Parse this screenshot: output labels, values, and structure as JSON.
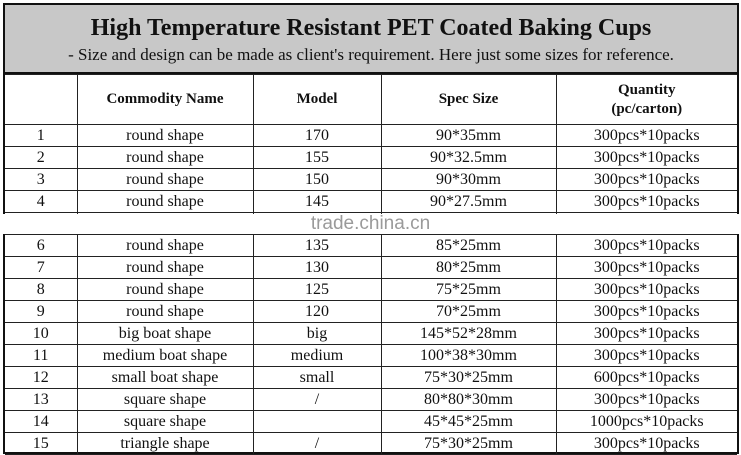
{
  "title": "High Temperature Resistant PET Coated Baking Cups",
  "subtitle": "-  Size and design can be made as client's requirement. Here just some sizes for reference.",
  "columns": [
    "",
    "Commodity Name",
    "Model",
    "Spec Size",
    "Quantity\n(pc/carton)"
  ],
  "quantity_header": {
    "line1": "Quantity",
    "line2": "(pc/carton)"
  },
  "rows": [
    [
      "1",
      "round shape",
      "170",
      "90*35mm",
      "300pcs*10packs"
    ],
    [
      "2",
      "round shape",
      "155",
      "90*32.5mm",
      "300pcs*10packs"
    ],
    [
      "3",
      "round shape",
      "150",
      "90*30mm",
      "300pcs*10packs"
    ],
    [
      "4",
      "round shape",
      "145",
      "90*27.5mm",
      "300pcs*10packs"
    ],
    [
      "",
      "",
      "",
      "",
      ""
    ],
    [
      "6",
      "round shape",
      "135",
      "85*25mm",
      "300pcs*10packs"
    ],
    [
      "7",
      "round shape",
      "130",
      "80*25mm",
      "300pcs*10packs"
    ],
    [
      "8",
      "round shape",
      "125",
      "75*25mm",
      "300pcs*10packs"
    ],
    [
      "9",
      "round shape",
      "120",
      "70*25mm",
      "300pcs*10packs"
    ],
    [
      "10",
      "big boat shape",
      "big",
      "145*52*28mm",
      "300pcs*10packs"
    ],
    [
      "11",
      "medium boat shape",
      "medium",
      "100*38*30mm",
      "300pcs*10packs"
    ],
    [
      "12",
      "small boat shape",
      "small",
      "75*30*25mm",
      "600pcs*10packs"
    ],
    [
      "13",
      "square shape",
      "/",
      "80*80*30mm",
      "300pcs*10packs"
    ],
    [
      "14",
      "square shape",
      "",
      "45*45*25mm",
      "1000pcs*10packs"
    ],
    [
      "15",
      "triangle shape",
      "/",
      "75*30*25mm",
      "300pcs*10packs"
    ]
  ],
  "watermark": "trade.china.cn",
  "colors": {
    "banner": "#c8c8c8",
    "watermark": "#9a9a9a"
  }
}
